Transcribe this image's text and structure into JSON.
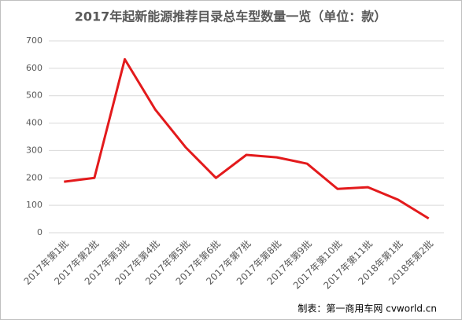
{
  "chart_data": {
    "type": "line",
    "title": "2017年起新能源推荐目录总车型数量一览（单位：款）",
    "categories": [
      "2017年第1批",
      "2017年第2批",
      "2017年第3批",
      "2017年第4批",
      "2017年第5批",
      "2017年第6批",
      "2017年第7批",
      "2017年第8批",
      "2017年第9批",
      "2017年第10批",
      "2017年第11批",
      "2018年第1批",
      "2018年第2批"
    ],
    "series": [
      {
        "name": "总车型数量",
        "color": "#e31a1c",
        "values": [
          186,
          200,
          633,
          450,
          312,
          200,
          284,
          275,
          252,
          160,
          166,
          120,
          52
        ]
      }
    ],
    "ylim": [
      0,
      700
    ],
    "yticks": [
      0,
      100,
      200,
      300,
      400,
      500,
      600,
      700
    ],
    "grid": true,
    "annotation": "制表：第一商用车网 cvworld.cn"
  }
}
